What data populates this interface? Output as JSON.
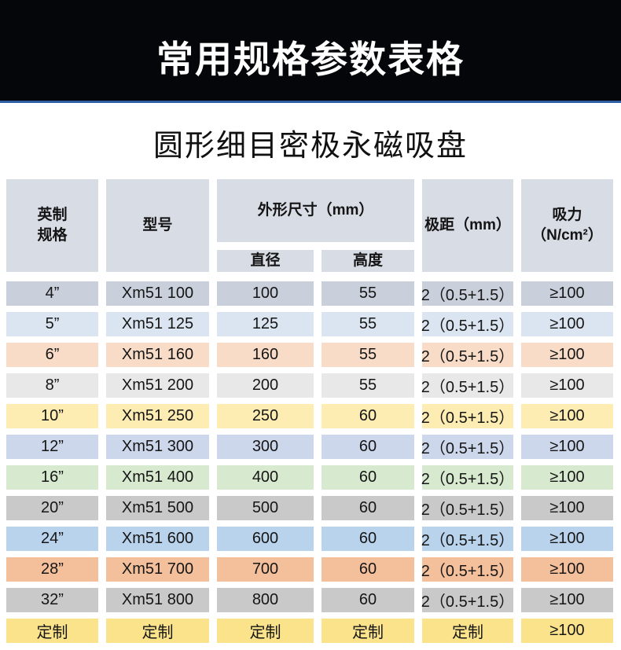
{
  "banner": {
    "title": "常用规格参数表格"
  },
  "page": {
    "title": "圆形细目密极永磁吸盘"
  },
  "colors": {
    "banner_bg": "#05060a",
    "banner_accent_line": "#2e5fa6",
    "header_cell_bg": "#d7dce5"
  },
  "table": {
    "header": {
      "spec_line1": "英制",
      "spec_line2": "规格",
      "model": "型号",
      "size": "外形尺寸（mm）",
      "diameter": "直径",
      "height": "高度",
      "pitch": "极距（mm）",
      "force_line1": "吸力",
      "force_line2": "（N/cm²）"
    },
    "rows": [
      {
        "spec": "4”",
        "model": "Xm51 100",
        "diameter": "100",
        "height": "55",
        "pitch": "2（0.5+1.5）",
        "force": "≥100",
        "color": "#c9cfdb"
      },
      {
        "spec": "5”",
        "model": "Xm51 125",
        "diameter": "125",
        "height": "55",
        "pitch": "2（0.5+1.5）",
        "force": "≥100",
        "color": "#dbe5f1"
      },
      {
        "spec": "6”",
        "model": "Xm51 160",
        "diameter": "160",
        "height": "55",
        "pitch": "2（0.5+1.5）",
        "force": "≥100",
        "color": "#f8dcc7"
      },
      {
        "spec": "8”",
        "model": "Xm51 200",
        "diameter": "200",
        "height": "55",
        "pitch": "2（0.5+1.5）",
        "force": "≥100",
        "color": "#e8e8e8"
      },
      {
        "spec": "10”",
        "model": "Xm51 250",
        "diameter": "250",
        "height": "60",
        "pitch": "2（0.5+1.5）",
        "force": "≥100",
        "color": "#fdedb2"
      },
      {
        "spec": "12”",
        "model": "Xm51 300",
        "diameter": "300",
        "height": "60",
        "pitch": "2（0.5+1.5）",
        "force": "≥100",
        "color": "#cdd7eb"
      },
      {
        "spec": "16”",
        "model": "Xm51 400",
        "diameter": "400",
        "height": "60",
        "pitch": "2（0.5+1.5）",
        "force": "≥100",
        "color": "#d7e9cf"
      },
      {
        "spec": "20”",
        "model": "Xm51 500",
        "diameter": "500",
        "height": "60",
        "pitch": "2（0.5+1.5）",
        "force": "≥100",
        "color": "#c9c9c9"
      },
      {
        "spec": "24”",
        "model": "Xm51 600",
        "diameter": "600",
        "height": "60",
        "pitch": "2（0.5+1.5）",
        "force": "≥100",
        "color": "#b9d3ed"
      },
      {
        "spec": "28”",
        "model": "Xm51 700",
        "diameter": "700",
        "height": "60",
        "pitch": "2（0.5+1.5）",
        "force": "≥100",
        "color": "#f4c09b"
      },
      {
        "spec": "32”",
        "model": "Xm51 800",
        "diameter": "800",
        "height": "60",
        "pitch": "2（0.5+1.5）",
        "force": "≥100",
        "color": "#c9c9c9"
      },
      {
        "spec": "定制",
        "model": "定制",
        "diameter": "定制",
        "height": "定制",
        "pitch": "定制",
        "force": "≥100",
        "color": "#fbe38b"
      }
    ]
  }
}
